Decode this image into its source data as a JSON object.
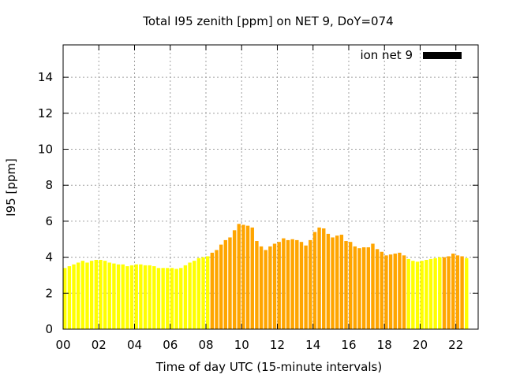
{
  "chart_data": {
    "type": "bar",
    "title": "Total I95 zenith [ppm] on NET 9, DoY=074",
    "xlabel": "Time of day UTC (15-minute intervals)",
    "ylabel": "I95 [ppm]",
    "xlim": [
      0,
      23.25
    ],
    "ylim": [
      0,
      15.8
    ],
    "x_ticks": [
      "00",
      "02",
      "04",
      "06",
      "08",
      "10",
      "12",
      "14",
      "16",
      "18",
      "20",
      "22"
    ],
    "x_tick_values": [
      0,
      2,
      4,
      6,
      8,
      10,
      12,
      14,
      16,
      18,
      20,
      22
    ],
    "y_ticks": [
      "0",
      "2",
      "4",
      "6",
      "8",
      "10",
      "12",
      "14"
    ],
    "y_tick_values": [
      0,
      2,
      4,
      6,
      8,
      10,
      12,
      14
    ],
    "grid": true,
    "legend": {
      "label": "ion net 9",
      "color": "#000000",
      "placement": "top-right"
    },
    "interval_hours": 0.25,
    "colors": {
      "low": "#ffff00",
      "high": "#ffa500"
    },
    "series": [
      {
        "values": [
          3.4,
          3.5,
          3.6,
          3.7,
          3.8,
          3.7,
          3.8,
          3.85,
          3.85,
          3.8,
          3.7,
          3.65,
          3.6,
          3.6,
          3.5,
          3.55,
          3.6,
          3.6,
          3.55,
          3.55,
          3.5,
          3.4,
          3.4,
          3.4,
          3.4,
          3.35,
          3.4,
          3.55,
          3.7,
          3.8,
          3.95,
          4.0,
          4.05,
          4.25,
          4.4,
          4.7,
          4.95,
          5.1,
          5.5,
          5.85,
          5.8,
          5.75,
          5.65,
          4.9,
          4.6,
          4.4,
          4.6,
          4.75,
          4.85,
          5.05,
          4.95,
          5.0,
          4.95,
          4.85,
          4.65,
          4.95,
          5.4,
          5.65,
          5.6,
          5.3,
          5.1,
          5.2,
          5.25,
          4.9,
          4.85,
          4.6,
          4.5,
          4.55,
          4.55,
          4.75,
          4.45,
          4.3,
          4.1,
          4.15,
          4.2,
          4.25,
          4.1,
          3.9,
          3.8,
          3.75,
          3.8,
          3.85,
          3.9,
          3.95,
          4.0,
          4.0,
          4.05,
          4.2,
          4.1,
          4.05,
          3.95
        ],
        "levels": [
          "low",
          "low",
          "low",
          "low",
          "low",
          "low",
          "low",
          "low",
          "low",
          "low",
          "low",
          "low",
          "low",
          "low",
          "low",
          "low",
          "low",
          "low",
          "low",
          "low",
          "low",
          "low",
          "low",
          "low",
          "low",
          "low",
          "low",
          "low",
          "low",
          "low",
          "low",
          "low",
          "low",
          "high",
          "high",
          "high",
          "high",
          "high",
          "high",
          "high",
          "high",
          "high",
          "high",
          "high",
          "high",
          "high",
          "high",
          "high",
          "high",
          "high",
          "high",
          "high",
          "high",
          "high",
          "high",
          "high",
          "high",
          "high",
          "high",
          "high",
          "high",
          "high",
          "high",
          "high",
          "high",
          "high",
          "high",
          "high",
          "high",
          "high",
          "high",
          "high",
          "high",
          "high",
          "high",
          "high",
          "high",
          "low",
          "low",
          "low",
          "low",
          "low",
          "low",
          "low",
          "low",
          "high",
          "high",
          "high",
          "high",
          "high",
          "low"
        ]
      }
    ]
  }
}
